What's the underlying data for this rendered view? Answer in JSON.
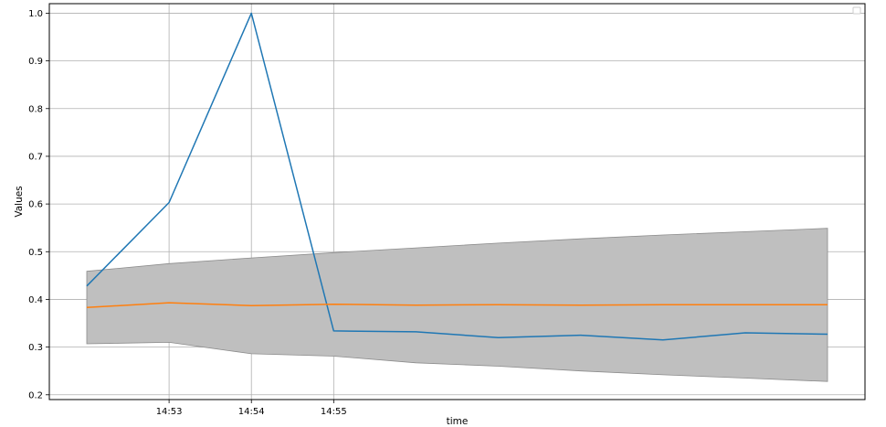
{
  "chart_data": {
    "type": "line",
    "title": "",
    "xlabel": "time",
    "ylabel": "Values",
    "ylim": [
      0.19,
      1.02
    ],
    "y_ticks": [
      0.2,
      0.3,
      0.4,
      0.5,
      0.6,
      0.7,
      0.8,
      0.9,
      1.0
    ],
    "y_tick_labels": [
      "0.2",
      "0.3",
      "0.4",
      "0.5",
      "0.6",
      "0.7",
      "0.8",
      "0.9",
      "1.0"
    ],
    "x_tick_labels": [
      "14:53",
      "14:54",
      "14:55"
    ],
    "x_tick_index": [
      1,
      2,
      3
    ],
    "grid": true,
    "legend": "top-right (empty)",
    "x_count": 10,
    "series": [
      {
        "color": "#1f77b4",
        "values": [
          0.428,
          0.603,
          1.0,
          0.334,
          0.332,
          0.32,
          0.325,
          0.315,
          0.33,
          0.327
        ]
      },
      {
        "color": "#ff7f0e",
        "values": [
          0.383,
          0.393,
          0.387,
          0.39,
          0.388,
          0.389,
          0.388,
          0.389,
          0.389,
          0.389
        ]
      }
    ],
    "band": {
      "color": "#bfbfbf",
      "edge_color": "#8c8c8c",
      "upper": [
        0.459,
        0.475,
        0.487,
        0.498,
        0.508,
        0.518,
        0.527,
        0.535,
        0.542,
        0.549
      ],
      "lower": [
        0.307,
        0.31,
        0.286,
        0.281,
        0.267,
        0.26,
        0.25,
        0.242,
        0.235,
        0.228
      ]
    }
  }
}
